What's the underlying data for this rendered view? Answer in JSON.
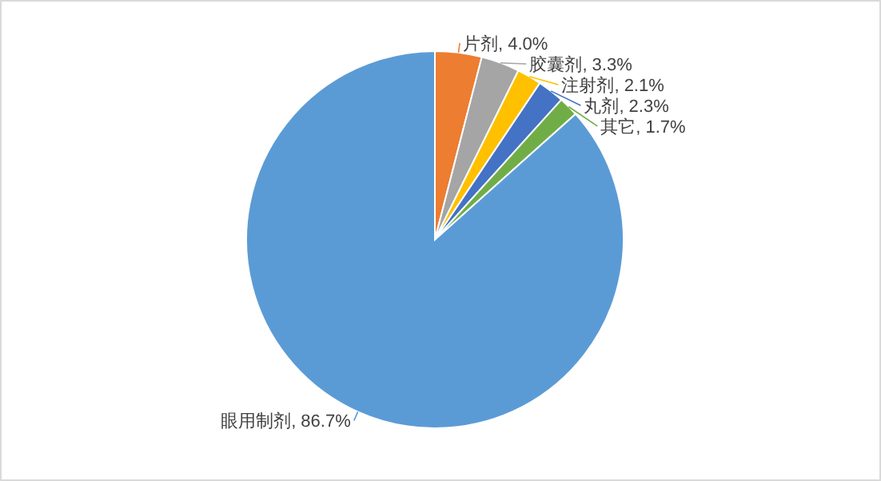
{
  "chart_data": {
    "type": "pie",
    "categories": [
      "片剂",
      "胶囊剂",
      "注射剂",
      "丸剂",
      "其它",
      "眼用制剂"
    ],
    "values": [
      4.0,
      3.3,
      2.1,
      2.3,
      1.7,
      86.7
    ],
    "colors": [
      "#ed7d31",
      "#a5a5a5",
      "#ffc000",
      "#4472c4",
      "#70ad47",
      "#5b9bd5"
    ],
    "value_labels": [
      "4.0%",
      "3.3%",
      "2.1%",
      "2.3%",
      "1.7%",
      "86.7%"
    ],
    "legend": false
  }
}
